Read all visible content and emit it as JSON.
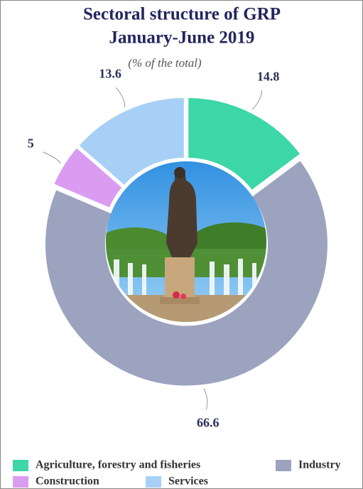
{
  "chart_data": {
    "type": "donut",
    "title": [
      "Sectoral structure of GRP",
      "January-June 2019"
    ],
    "note": "(% of the total)",
    "categories": [
      "Agriculture, forestry and fisheries",
      "Industry",
      "Construction",
      "Services"
    ],
    "values": [
      14.8,
      66.6,
      5,
      13.6
    ],
    "colors": [
      "#3dd6a6",
      "#9ca3bf",
      "#d99cf0",
      "#a8d0f6"
    ],
    "legend": "bottom"
  }
}
